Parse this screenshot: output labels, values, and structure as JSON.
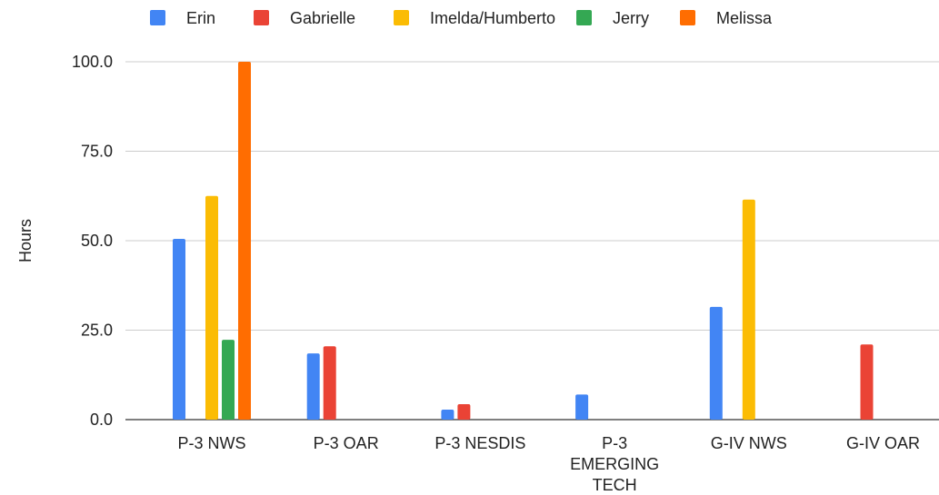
{
  "chart_data": {
    "type": "bar",
    "title": "",
    "xlabel": "",
    "ylabel": "Hours",
    "ylim": [
      0,
      100
    ],
    "yticks": [
      "0.0",
      "25.0",
      "50.0",
      "75.0",
      "100.0"
    ],
    "ytick_values": [
      0,
      25,
      50,
      75,
      100
    ],
    "grid": true,
    "legend_position": "top",
    "categories": [
      [
        "P-3 NWS"
      ],
      [
        "P-3 OAR"
      ],
      [
        "P-3 NESDIS"
      ],
      [
        "P-3",
        "EMERGING",
        "TECH"
      ],
      [
        "G-IV NWS"
      ],
      [
        "G-IV OAR"
      ]
    ],
    "series": [
      {
        "name": "Erin",
        "color": "#4285F4",
        "values": [
          50.5,
          18.5,
          2.8,
          7.0,
          31.5,
          null
        ]
      },
      {
        "name": "Gabrielle",
        "color": "#EA4335",
        "values": [
          null,
          20.5,
          4.3,
          null,
          null,
          21.0
        ]
      },
      {
        "name": "Imelda/Humberto",
        "color": "#FBBC04",
        "values": [
          62.5,
          null,
          null,
          null,
          61.5,
          null
        ]
      },
      {
        "name": "Jerry",
        "color": "#34A853",
        "values": [
          22.3,
          null,
          null,
          null,
          null,
          null
        ]
      },
      {
        "name": "Melissa",
        "color": "#FF6D01",
        "values": [
          100.0,
          null,
          null,
          null,
          null,
          null
        ]
      }
    ]
  }
}
